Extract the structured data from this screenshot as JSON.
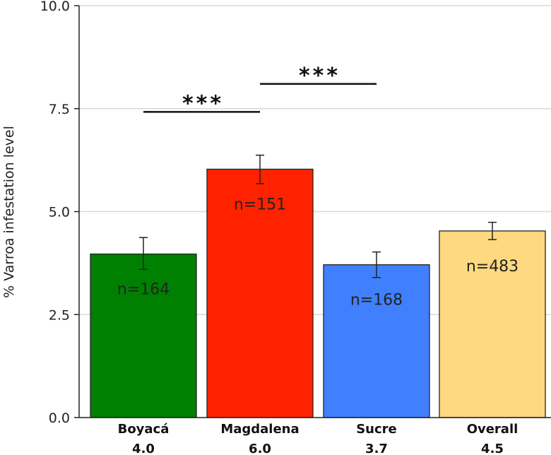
{
  "chart_data": {
    "type": "bar",
    "title": "",
    "xlabel": "",
    "ylabel": "% Varroa infestation level",
    "ylim": [
      0,
      10
    ],
    "yticks": [
      "0.0",
      "2.5",
      "5.0",
      "7.5",
      "10.0"
    ],
    "ytick_values": [
      0,
      2.5,
      5,
      7.5,
      10
    ],
    "grid": true,
    "categories": [
      "Boyacá",
      "Magdalena",
      "Sucre",
      "Overall"
    ],
    "mean_labels": [
      "4.0",
      "6.0",
      "3.7",
      "4.5"
    ],
    "values": [
      3.97,
      6.03,
      3.71,
      4.53
    ],
    "error_low": [
      3.6,
      5.68,
      3.4,
      4.32
    ],
    "error_high": [
      4.37,
      6.37,
      4.02,
      4.74
    ],
    "n_labels": [
      "n=164",
      "n=151",
      "n=168",
      "n=483"
    ],
    "colors": [
      "#008000",
      "#ff2200",
      "#4080ff",
      "#ffd980"
    ],
    "significance": [
      {
        "from": 0,
        "to": 1,
        "label": "***",
        "y": 7.42
      },
      {
        "from": 1,
        "to": 2,
        "label": "***",
        "y": 8.1
      }
    ]
  }
}
